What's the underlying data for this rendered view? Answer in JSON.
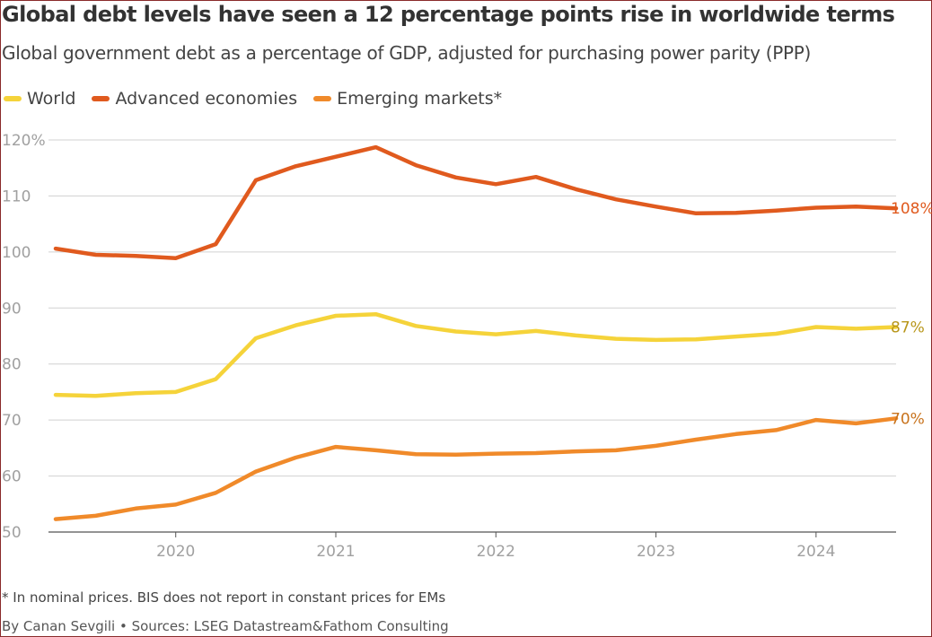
{
  "header": {
    "title": "Global debt levels have seen a 12 percentage points rise in worldwide terms",
    "subtitle": "Global government debt as a percentage of GDP, adjusted for purchasing power parity (PPP)"
  },
  "legend": {
    "items": [
      {
        "label": "World",
        "color": "#f5d33a"
      },
      {
        "label": "Advanced economies",
        "color": "#e05a1e"
      },
      {
        "label": "Emerging markets*",
        "color": "#f08a2a"
      }
    ]
  },
  "footer": {
    "footnote": "* In nominal prices. BIS does not report in constant prices for EMs",
    "credit": "By Canan Sevgili • Sources: LSEG Datastream&Fathom Consulting"
  },
  "chart_data": {
    "type": "line",
    "title": "Global debt levels have seen a 12 percentage points rise in worldwide terms",
    "subtitle": "Global government debt as a percentage of GDP, adjusted for purchasing power parity (PPP)",
    "x": [
      "2019-Q2",
      "2019-Q3",
      "2019-Q4",
      "2020-Q1",
      "2020-Q2",
      "2020-Q3",
      "2020-Q4",
      "2021-Q1",
      "2021-Q2",
      "2021-Q3",
      "2021-Q4",
      "2022-Q1",
      "2022-Q2",
      "2022-Q3",
      "2022-Q4",
      "2023-Q1",
      "2023-Q2",
      "2023-Q3",
      "2023-Q4",
      "2024-Q1",
      "2024-Q2",
      "2024-Q3"
    ],
    "xlim": [
      "2019-Q2",
      "2024-Q3"
    ],
    "ylim": [
      50,
      120
    ],
    "y_ticks": [
      {
        "value": 120,
        "label": "120%"
      },
      {
        "value": 110,
        "label": "110"
      },
      {
        "value": 100,
        "label": "100"
      },
      {
        "value": 90,
        "label": "90"
      },
      {
        "value": 80,
        "label": "80"
      },
      {
        "value": 70,
        "label": "70"
      },
      {
        "value": 60,
        "label": "60"
      },
      {
        "value": 50,
        "label": "50"
      }
    ],
    "x_ticks": [
      {
        "value": "2020",
        "label": "2020"
      },
      {
        "value": "2021",
        "label": "2021"
      },
      {
        "value": "2022",
        "label": "2022"
      },
      {
        "value": "2023",
        "label": "2023"
      },
      {
        "value": "2024",
        "label": "2024"
      }
    ],
    "grid": true,
    "legend_position": "top-left",
    "series": [
      {
        "name": "Advanced economies",
        "color": "#e05a1e",
        "label_color": "#e05a1e",
        "end_label": "108%",
        "values": [
          100.6,
          99.5,
          99.3,
          98.9,
          101.4,
          112.8,
          115.3,
          117.0,
          118.7,
          115.5,
          113.3,
          112.1,
          113.4,
          111.2,
          109.4,
          108.1,
          106.9,
          107.0,
          107.4,
          107.9,
          108.1,
          107.8
        ]
      },
      {
        "name": "World",
        "color": "#f5d33a",
        "label_color": "#b8961a",
        "end_label": "87%",
        "values": [
          74.5,
          74.3,
          74.8,
          75.0,
          77.3,
          84.6,
          86.9,
          88.6,
          88.9,
          86.8,
          85.8,
          85.3,
          85.9,
          85.1,
          84.5,
          84.3,
          84.4,
          84.9,
          85.4,
          86.6,
          86.3,
          86.6
        ]
      },
      {
        "name": "Emerging markets*",
        "color": "#f08a2a",
        "label_color": "#c8731d",
        "end_label": "70%",
        "values": [
          52.3,
          52.9,
          54.2,
          54.9,
          57.0,
          60.8,
          63.3,
          65.2,
          64.6,
          63.9,
          63.8,
          64.0,
          64.1,
          64.4,
          64.6,
          65.4,
          66.5,
          67.5,
          68.2,
          70.0,
          69.4,
          70.3
        ]
      }
    ]
  }
}
